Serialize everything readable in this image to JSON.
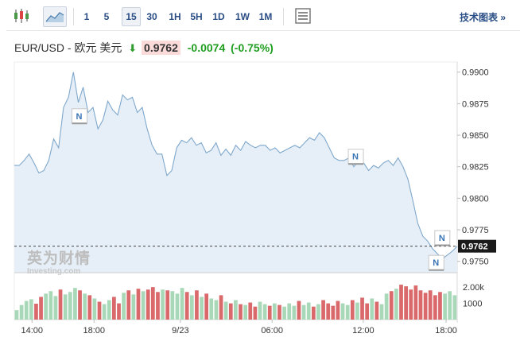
{
  "toolbar": {
    "intervals": [
      "1",
      "5",
      "15",
      "30",
      "1H",
      "5H",
      "1D",
      "1W",
      "1M"
    ],
    "active_interval": "15",
    "tech_chart_link": "技术图表 »"
  },
  "header": {
    "title": "EUR/USD - 欧元 美元",
    "price": "0.9762",
    "change": "-0.0074",
    "change_pct": "(-0.75%)"
  },
  "watermark": {
    "logo_cn": "英为财情",
    "logo_en": "Investing.com"
  },
  "colors": {
    "line": "#7fa8cc",
    "area": "#e6eff7",
    "up_volume": "#a9d8b8",
    "down_volume": "#d9696b",
    "price_label_bg": "#1a1a1a",
    "link": "#2a4e86"
  },
  "chart_data": {
    "type": "area",
    "price_axis_ticks": [
      "0.9900",
      "0.9875",
      "0.9850",
      "0.9825",
      "0.9800",
      "0.9775",
      "0.9750"
    ],
    "ylim": [
      0.9741,
      0.9908
    ],
    "current_price_label": "0.9762",
    "current_price": 0.9762,
    "volume_axis_ticks": [
      "2.00k",
      "1000"
    ],
    "volume_ylim": [
      0,
      2300
    ],
    "time_axis_ticks": [
      "14:00",
      "18:00",
      "9/23",
      "06:00",
      "12:00",
      "18:00"
    ],
    "news_markers": [
      "N",
      "N",
      "N",
      "N"
    ],
    "price_series": [
      0.9826,
      0.9826,
      0.983,
      0.9835,
      0.9828,
      0.982,
      0.9822,
      0.983,
      0.9847,
      0.984,
      0.9872,
      0.988,
      0.99,
      0.9876,
      0.9888,
      0.9868,
      0.9872,
      0.9855,
      0.9862,
      0.9877,
      0.987,
      0.9866,
      0.9882,
      0.9878,
      0.988,
      0.9868,
      0.9872,
      0.9855,
      0.9842,
      0.9835,
      0.9835,
      0.9818,
      0.9822,
      0.984,
      0.9846,
      0.9844,
      0.9848,
      0.9842,
      0.9844,
      0.9836,
      0.9838,
      0.9844,
      0.9834,
      0.9839,
      0.9834,
      0.9842,
      0.9838,
      0.9845,
      0.9842,
      0.984,
      0.9842,
      0.9842,
      0.9838,
      0.984,
      0.9836,
      0.9838,
      0.984,
      0.9842,
      0.984,
      0.9844,
      0.9848,
      0.9846,
      0.9852,
      0.9848,
      0.984,
      0.9832,
      0.983,
      0.983,
      0.9832,
      0.9825,
      0.983,
      0.9828,
      0.9822,
      0.9826,
      0.9824,
      0.9828,
      0.983,
      0.9826,
      0.9832,
      0.9825,
      0.9815,
      0.9798,
      0.978,
      0.977,
      0.9766,
      0.976,
      0.9756,
      0.9752,
      0.9755,
      0.9758,
      0.9762
    ],
    "volume_series": [
      580,
      900,
      1150,
      1250,
      980,
      1400,
      1600,
      1750,
      1450,
      1850,
      1550,
      1700,
      1950,
      1800,
      1600,
      1500,
      1300,
      1100,
      950,
      1200,
      1400,
      1000,
      1650,
      1800,
      1550,
      1900,
      1750,
      1850,
      2000,
      1700,
      1850,
      1800,
      1750,
      1600,
      1950,
      1700,
      1500,
      1800,
      1400,
      1600,
      1300,
      1200,
      1500,
      1100,
      1000,
      1200,
      950,
      900,
      1050,
      800,
      1100,
      950,
      850,
      1000,
      900,
      800,
      1000,
      850,
      1150,
      900,
      1050,
      800,
      950,
      1200,
      1000,
      850,
      1150,
      1000,
      900,
      1200,
      1050,
      1350,
      1000,
      1300,
      1100,
      950,
      1600,
      1750,
      1900,
      2150,
      2050,
      1850,
      2100,
      1800,
      1650,
      1800,
      1500,
      1700,
      1600,
      1750,
      1500
    ]
  }
}
